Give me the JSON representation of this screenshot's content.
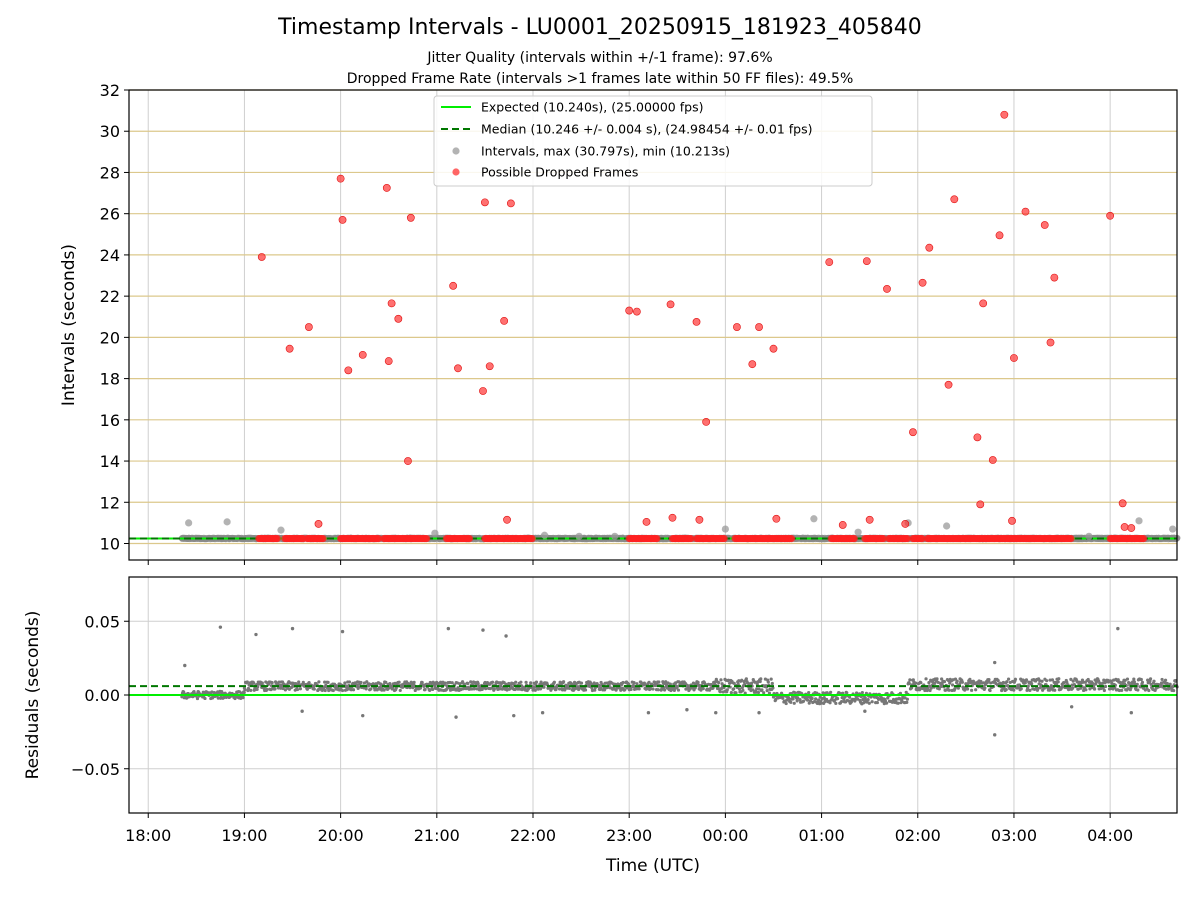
{
  "title": "Timestamp Intervals - LU0001_20250915_181923_405840",
  "subtitle1": "Jitter Quality (intervals within +/-1 frame): 97.6%",
  "subtitle2": "Dropped Frame Rate (intervals >1 frames late within 50 FF files): 49.5%",
  "chart_data": [
    {
      "type": "scatter",
      "ylabel": "Intervals (seconds)",
      "ylim": [
        9.2,
        32
      ],
      "y_ticks": [
        "10",
        "12",
        "14",
        "16",
        "18",
        "20",
        "22",
        "24",
        "26",
        "28",
        "30",
        "32"
      ],
      "grid": true,
      "legend_position": "top-center",
      "legend": [
        {
          "label": "Expected (10.240s), (25.00000 fps)",
          "style": "solid-line",
          "color": "#00ee00"
        },
        {
          "label": "Median (10.246 +/- 0.004 s), (24.98454 +/- 0.01 fps)",
          "style": "dashed-line",
          "color": "#007700"
        },
        {
          "label": "Intervals, max (30.797s), min (10.213s)",
          "style": "marker",
          "color": "#999999"
        },
        {
          "label": "Possible Dropped Frames",
          "style": "marker",
          "color": "#ff3333"
        }
      ],
      "expected_interval": 10.24,
      "median_interval": 10.246,
      "baseline_span_hours": [
        18.35,
        28.7
      ],
      "dropped_frame_baseline_runs_hours": [
        [
          19.15,
          19.35
        ],
        [
          19.42,
          19.62
        ],
        [
          19.65,
          19.82
        ],
        [
          20.0,
          20.4
        ],
        [
          20.45,
          20.9
        ],
        [
          21.1,
          21.35
        ],
        [
          21.5,
          22.0
        ],
        [
          23.0,
          23.3
        ],
        [
          23.45,
          23.65
        ],
        [
          23.7,
          24.0
        ],
        [
          24.1,
          24.7
        ],
        [
          25.1,
          25.35
        ],
        [
          25.45,
          25.65
        ],
        [
          25.7,
          25.9
        ],
        [
          25.95,
          26.05
        ],
        [
          26.1,
          26.5
        ],
        [
          26.5,
          26.95
        ],
        [
          26.95,
          27.45
        ],
        [
          27.45,
          27.6
        ],
        [
          28.0,
          28.35
        ]
      ],
      "series": [
        {
          "name": "Intervals",
          "color": "#999999",
          "points": [
            [
              18.42,
              11.0
            ],
            [
              18.82,
              11.05
            ],
            [
              19.38,
              10.65
            ],
            [
              20.98,
              10.5
            ],
            [
              22.12,
              10.4
            ],
            [
              22.48,
              10.35
            ],
            [
              22.85,
              10.35
            ],
            [
              24.0,
              10.7
            ],
            [
              24.92,
              11.2
            ],
            [
              25.38,
              10.55
            ],
            [
              25.9,
              11.0
            ],
            [
              26.3,
              10.85
            ],
            [
              27.78,
              10.35
            ],
            [
              28.3,
              11.1
            ],
            [
              28.65,
              10.7
            ]
          ]
        },
        {
          "name": "Possible Dropped Frames",
          "color": "#ff3333",
          "points": [
            [
              19.18,
              23.9
            ],
            [
              19.47,
              19.45
            ],
            [
              19.67,
              20.5
            ],
            [
              19.77,
              10.95
            ],
            [
              20.0,
              27.7
            ],
            [
              20.02,
              25.7
            ],
            [
              20.08,
              18.4
            ],
            [
              20.23,
              19.15
            ],
            [
              20.48,
              27.25
            ],
            [
              20.5,
              18.85
            ],
            [
              20.53,
              21.65
            ],
            [
              20.6,
              20.9
            ],
            [
              20.7,
              14.0
            ],
            [
              20.73,
              25.8
            ],
            [
              21.17,
              22.5
            ],
            [
              21.22,
              18.5
            ],
            [
              21.48,
              17.4
            ],
            [
              21.5,
              26.55
            ],
            [
              21.55,
              18.6
            ],
            [
              21.7,
              20.8
            ],
            [
              21.73,
              11.15
            ],
            [
              21.77,
              26.5
            ],
            [
              23.0,
              21.3
            ],
            [
              23.08,
              21.25
            ],
            [
              23.18,
              11.05
            ],
            [
              23.43,
              21.6
            ],
            [
              23.45,
              11.25
            ],
            [
              23.7,
              20.75
            ],
            [
              23.73,
              11.15
            ],
            [
              23.8,
              15.9
            ],
            [
              24.12,
              20.5
            ],
            [
              24.28,
              18.7
            ],
            [
              24.35,
              20.5
            ],
            [
              24.5,
              19.45
            ],
            [
              24.53,
              11.2
            ],
            [
              25.08,
              23.65
            ],
            [
              25.22,
              10.9
            ],
            [
              25.47,
              23.7
            ],
            [
              25.5,
              11.15
            ],
            [
              25.68,
              22.35
            ],
            [
              25.87,
              10.95
            ],
            [
              25.95,
              15.4
            ],
            [
              26.05,
              22.65
            ],
            [
              26.12,
              24.35
            ],
            [
              26.32,
              17.7
            ],
            [
              26.38,
              26.7
            ],
            [
              26.62,
              15.15
            ],
            [
              26.65,
              11.9
            ],
            [
              26.68,
              21.65
            ],
            [
              26.78,
              14.05
            ],
            [
              26.85,
              24.95
            ],
            [
              26.9,
              30.8
            ],
            [
              26.98,
              11.1
            ],
            [
              27.0,
              19.0
            ],
            [
              27.12,
              26.1
            ],
            [
              27.32,
              25.45
            ],
            [
              27.38,
              19.75
            ],
            [
              27.42,
              22.9
            ],
            [
              28.0,
              25.9
            ],
            [
              28.13,
              11.95
            ],
            [
              28.15,
              10.8
            ],
            [
              28.22,
              10.75
            ]
          ]
        }
      ]
    },
    {
      "type": "scatter",
      "xlabel": "Time (UTC)",
      "ylabel": "Residuals (seconds)",
      "ylim": [
        -0.08,
        0.08
      ],
      "y_ticks": [
        "−0.05",
        "0.00",
        "0.05"
      ],
      "x_ticks": [
        "18:00",
        "19:00",
        "20:00",
        "21:00",
        "22:00",
        "23:00",
        "00:00",
        "01:00",
        "02:00",
        "03:00",
        "04:00"
      ],
      "grid": true,
      "expected_residual": 0.0,
      "median_residual": 0.006,
      "series": [
        {
          "name": "Residuals",
          "color": "#777777",
          "segments": [
            {
              "start": 18.35,
              "end": 19.0,
              "level": 0.0,
              "spread": 0.0025
            },
            {
              "start": 19.0,
              "end": 23.9,
              "level": 0.006,
              "spread": 0.003
            },
            {
              "start": 23.9,
              "end": 24.5,
              "level": 0.006,
              "spread": 0.005
            },
            {
              "start": 24.5,
              "end": 25.9,
              "level": -0.002,
              "spread": 0.004
            },
            {
              "start": 25.9,
              "end": 28.7,
              "level": 0.007,
              "spread": 0.004
            }
          ],
          "outliers": [
            [
              18.38,
              0.02
            ],
            [
              18.75,
              0.046
            ],
            [
              19.12,
              0.041
            ],
            [
              19.5,
              0.045
            ],
            [
              20.02,
              0.043
            ],
            [
              21.12,
              0.045
            ],
            [
              21.48,
              0.044
            ],
            [
              21.72,
              0.04
            ],
            [
              26.8,
              0.022
            ],
            [
              28.08,
              0.045
            ],
            [
              26.8,
              -0.027
            ],
            [
              20.23,
              -0.014
            ],
            [
              21.2,
              -0.015
            ],
            [
              21.8,
              -0.014
            ],
            [
              23.2,
              -0.012
            ],
            [
              23.9,
              -0.012
            ],
            [
              24.35,
              -0.012
            ],
            [
              25.45,
              -0.011
            ],
            [
              28.22,
              -0.012
            ],
            [
              19.6,
              -0.011
            ],
            [
              22.1,
              -0.012
            ],
            [
              23.6,
              -0.01
            ],
            [
              27.6,
              -0.008
            ]
          ]
        }
      ]
    }
  ]
}
